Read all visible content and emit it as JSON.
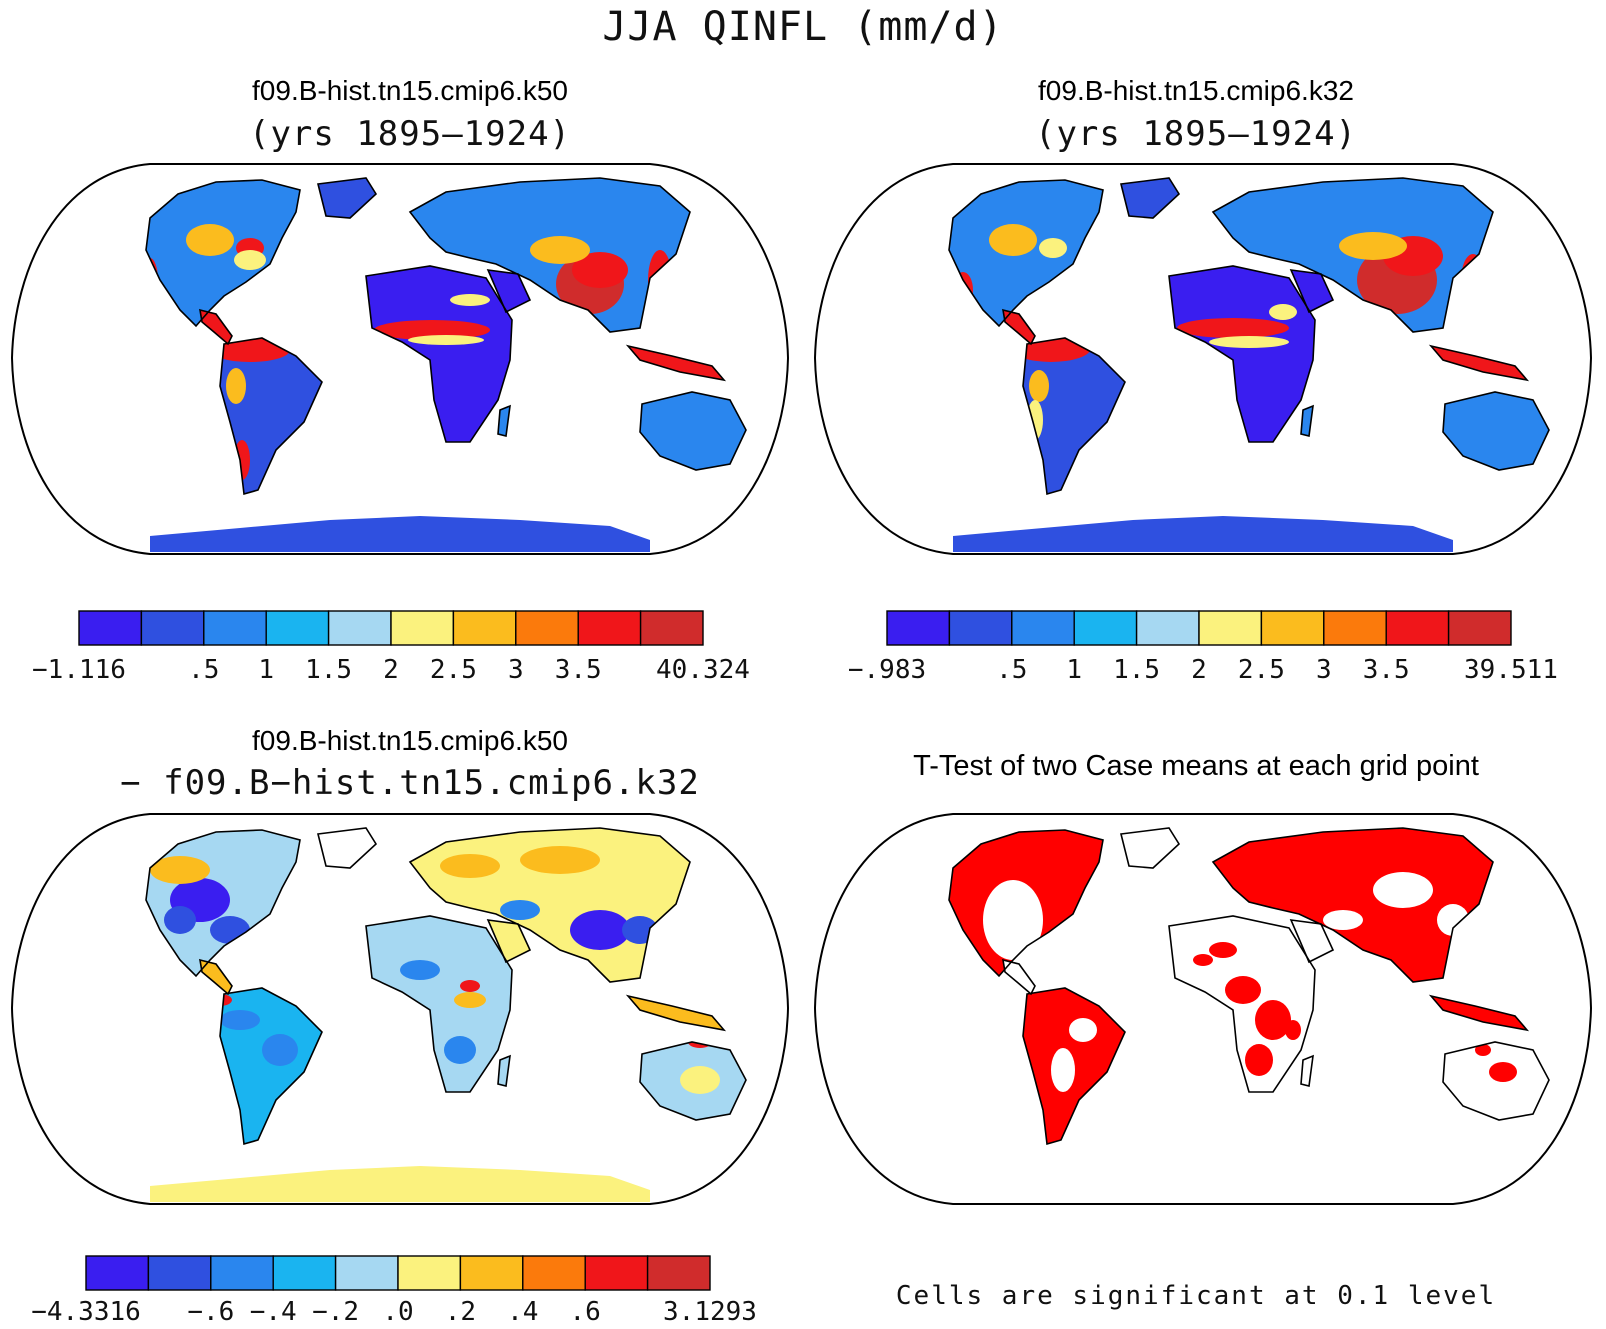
{
  "title": "JJA QINFL (mm/d)",
  "colors": [
    "#3a1ef0",
    "#2f50e0",
    "#2a86ee",
    "#1ab4f0",
    "#a6d8f2",
    "#fbf27e",
    "#fbbc1e",
    "#fb7a0c",
    "#f0161a",
    "#d02c2c"
  ],
  "panels": [
    {
      "id": "k50",
      "title": "f09.B-hist.tn15.cmip6.k50",
      "subtitle": "(yrs 1895–1924)",
      "colorbar": [
        "−1.116",
        ".5",
        "1",
        "1.5",
        "2",
        "2.5",
        "3",
        "3.5",
        "40.324"
      ]
    },
    {
      "id": "k32",
      "title": "f09.B-hist.tn15.cmip6.k32",
      "subtitle": "(yrs 1895–1924)",
      "colorbar": [
        "−.983",
        ".5",
        "1",
        "1.5",
        "2",
        "2.5",
        "3",
        "3.5",
        "39.511"
      ]
    },
    {
      "id": "diff",
      "title": "f09.B-hist.tn15.cmip6.k50",
      "subtitle": "− f09.B−hist.tn15.cmip6.k32",
      "colorbar": [
        "−4.3316",
        "−.6",
        "−.4",
        "−.2",
        ".0",
        ".2",
        ".4",
        ".6",
        "3.1293"
      ]
    },
    {
      "id": "ttest",
      "title": "T-Test of two Case means at each grid point",
      "note": "Cells are significant at 0.1 level",
      "significance_color": "#ff0000"
    }
  ]
}
